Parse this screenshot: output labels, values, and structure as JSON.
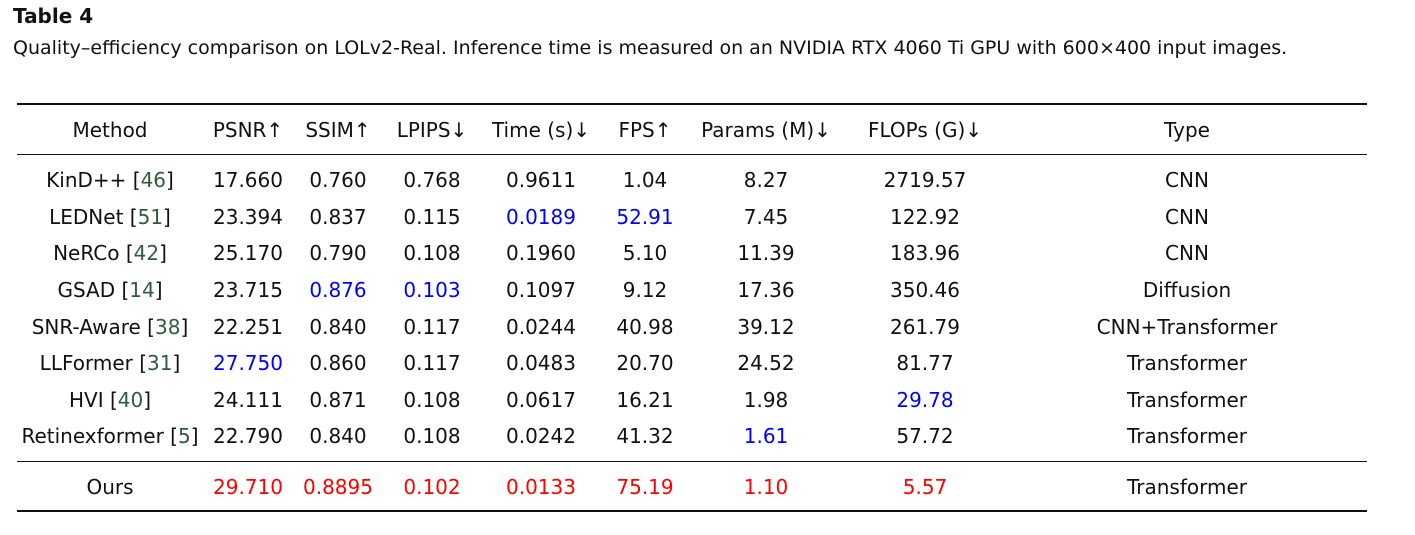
{
  "table_label": "Table 4",
  "caption": "Quality–efficiency comparison on LOLv2-Real. Inference time is measured on an NVIDIA RTX 4060 Ti GPU with 600×400 input images.",
  "colors": {
    "best": "#ff0000",
    "second_best": "#0000ff",
    "citation": "#2f5c3f",
    "text": "#111111"
  },
  "headers": [
    "Method",
    "PSNR↑",
    "SSIM↑",
    "LPIPS↓",
    "Time (s)↓",
    "FPS↑",
    "Params (M)↓",
    "FLOPs (G)↓",
    "Type"
  ],
  "rows": [
    {
      "method": "KinD++",
      "ref": "46",
      "psnr": "17.660",
      "ssim": "0.760",
      "lpips": "0.768",
      "time": "0.9611",
      "fps": "1.04",
      "params": "8.27",
      "flops": "2719.57",
      "type": "CNN",
      "highlight": {}
    },
    {
      "method": "LEDNet",
      "ref": "51",
      "psnr": "23.394",
      "ssim": "0.837",
      "lpips": "0.115",
      "time": "0.0189",
      "fps": "52.91",
      "params": "7.45",
      "flops": "122.92",
      "type": "CNN",
      "highlight": {
        "time": "second",
        "fps": "second"
      }
    },
    {
      "method": "NeRCo",
      "ref": "42",
      "psnr": "25.170",
      "ssim": "0.790",
      "lpips": "0.108",
      "time": "0.1960",
      "fps": "5.10",
      "params": "11.39",
      "flops": "183.96",
      "type": "CNN",
      "highlight": {}
    },
    {
      "method": "GSAD",
      "ref": "14",
      "psnr": "23.715",
      "ssim": "0.876",
      "lpips": "0.103",
      "time": "0.1097",
      "fps": "9.12",
      "params": "17.36",
      "flops": "350.46",
      "type": "Diffusion",
      "highlight": {
        "ssim": "second",
        "lpips": "second"
      }
    },
    {
      "method": "SNR-Aware",
      "ref": "38",
      "psnr": "22.251",
      "ssim": "0.840",
      "lpips": "0.117",
      "time": "0.0244",
      "fps": "40.98",
      "params": "39.12",
      "flops": "261.79",
      "type": "CNN+Transformer",
      "highlight": {}
    },
    {
      "method": "LLFormer",
      "ref": "31",
      "psnr": "27.750",
      "ssim": "0.860",
      "lpips": "0.117",
      "time": "0.0483",
      "fps": "20.70",
      "params": "24.52",
      "flops": "81.77",
      "type": "Transformer",
      "highlight": {
        "psnr": "second"
      }
    },
    {
      "method": "HVI",
      "ref": "40",
      "psnr": "24.111",
      "ssim": "0.871",
      "lpips": "0.108",
      "time": "0.0617",
      "fps": "16.21",
      "params": "1.98",
      "flops": "29.78",
      "type": "Transformer",
      "highlight": {
        "flops": "second"
      }
    },
    {
      "method": "Retinexformer",
      "ref": "5",
      "psnr": "22.790",
      "ssim": "0.840",
      "lpips": "0.108",
      "time": "0.0242",
      "fps": "41.32",
      "params": "1.61",
      "flops": "57.72",
      "type": "Transformer",
      "highlight": {
        "params": "second"
      }
    }
  ],
  "ours": {
    "method": "Ours",
    "psnr": "29.710",
    "ssim": "0.8895",
    "lpips": "0.102",
    "time": "0.0133",
    "fps": "75.19",
    "params": "1.10",
    "flops": "5.57",
    "type": "Transformer"
  }
}
